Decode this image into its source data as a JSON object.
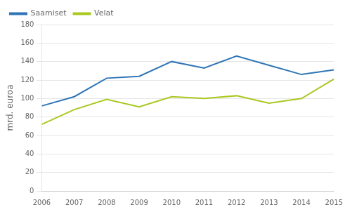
{
  "chart_data": {
    "type": "line",
    "ylabel": "mrd. euroa",
    "x": [
      2006,
      2007,
      2008,
      2009,
      2010,
      2011,
      2012,
      2013,
      2014,
      2015
    ],
    "series": [
      {
        "name": "Saamiset",
        "color": "#2E75B6",
        "values": [
          92,
          102,
          122,
          124,
          140,
          133,
          146,
          136,
          126,
          131
        ]
      },
      {
        "name": "Velat",
        "color": "#A9C820",
        "values": [
          72,
          88,
          99,
          91,
          102,
          100,
          103,
          95,
          100,
          121
        ]
      }
    ],
    "xlim": [
      2006,
      2015
    ],
    "xticks": [
      2006,
      2007,
      2008,
      2009,
      2010,
      2011,
      2012,
      2013,
      2014,
      2015
    ],
    "ylim": [
      0,
      180
    ],
    "yticks": [
      0,
      20,
      40,
      60,
      80,
      100,
      120,
      140,
      160,
      180
    ],
    "grid": "y",
    "legend": "upper left"
  }
}
